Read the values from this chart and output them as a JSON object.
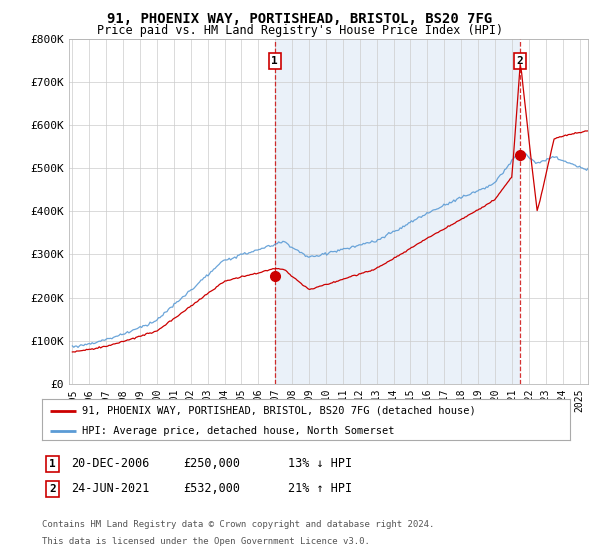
{
  "title": "91, PHOENIX WAY, PORTISHEAD, BRISTOL, BS20 7FG",
  "subtitle": "Price paid vs. HM Land Registry's House Price Index (HPI)",
  "ylabel_ticks": [
    "£0",
    "£100K",
    "£200K",
    "£300K",
    "£400K",
    "£500K",
    "£600K",
    "£700K",
    "£800K"
  ],
  "ytick_vals": [
    0,
    100000,
    200000,
    300000,
    400000,
    500000,
    600000,
    700000,
    800000
  ],
  "ylim": [
    0,
    800000
  ],
  "xlim_start": 1994.8,
  "xlim_end": 2025.5,
  "sale1_date": 2006.97,
  "sale1_price": 250000,
  "sale1_label": "1",
  "sale2_date": 2021.48,
  "sale2_price": 532000,
  "sale2_label": "2",
  "legend_line1": "91, PHOENIX WAY, PORTISHEAD, BRISTOL, BS20 7FG (detached house)",
  "legend_line2": "HPI: Average price, detached house, North Somerset",
  "sale1_col1": "20-DEC-2006",
  "sale1_col2": "£250,000",
  "sale1_col3": "13% ↓ HPI",
  "sale2_col1": "24-JUN-2021",
  "sale2_col2": "£532,000",
  "sale2_col3": "21% ↑ HPI",
  "footer_line1": "Contains HM Land Registry data © Crown copyright and database right 2024.",
  "footer_line2": "This data is licensed under the Open Government Licence v3.0.",
  "red_color": "#cc0000",
  "blue_color": "#5b9bd5",
  "fill_color": "#dce9f5",
  "background_color": "#ffffff",
  "grid_color": "#cccccc"
}
